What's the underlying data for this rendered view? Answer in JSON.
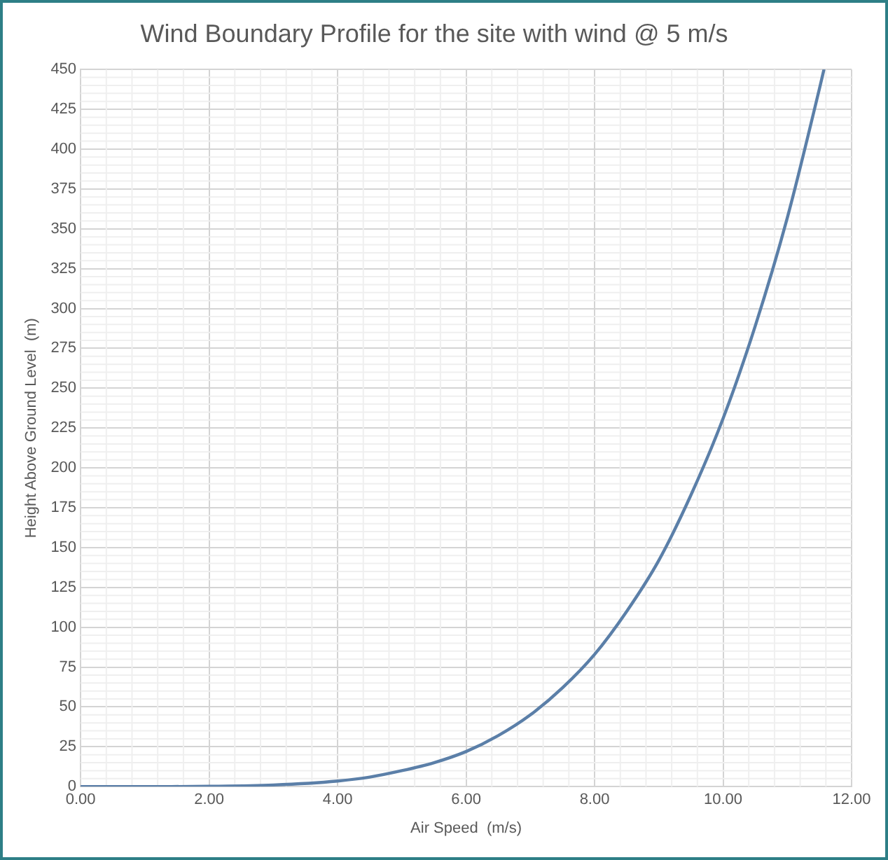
{
  "chart_data": {
    "type": "line",
    "title": "Wind Boundary Profile for the site with wind @ 5 m/s",
    "xlabel": "Air Speed  (m/s)",
    "ylabel": "Height Above Ground Level  (m)",
    "series": [
      {
        "color": "#5b7fa8",
        "x": [
          0,
          1,
          2,
          3,
          4,
          4.5,
          5,
          5.5,
          6,
          6.5,
          7,
          7.5,
          8,
          8.5,
          9,
          9.5,
          10,
          10.5,
          11,
          11.5,
          11.57
        ],
        "values": [
          0,
          0,
          0.2,
          1,
          3.5,
          6,
          10,
          15,
          22,
          32,
          45,
          62,
          83,
          110,
          142,
          183,
          231,
          289,
          357,
          438,
          450
        ]
      }
    ],
    "xlim": [
      0,
      12
    ],
    "xticks": [
      {
        "value": 0,
        "label": "0.00"
      },
      {
        "value": 2,
        "label": "2.00"
      },
      {
        "value": 4,
        "label": "4.00"
      },
      {
        "value": 6,
        "label": "6.00"
      },
      {
        "value": 8,
        "label": "8.00"
      },
      {
        "value": 10,
        "label": "10.00"
      },
      {
        "value": 12,
        "label": "12.00"
      }
    ],
    "ylim": [
      0,
      450
    ],
    "yticks": [
      0,
      25,
      50,
      75,
      100,
      125,
      150,
      175,
      200,
      225,
      250,
      275,
      300,
      325,
      350,
      375,
      400,
      425,
      450
    ],
    "grid": true,
    "legend": false,
    "marker": "none",
    "line_style": "solid"
  }
}
